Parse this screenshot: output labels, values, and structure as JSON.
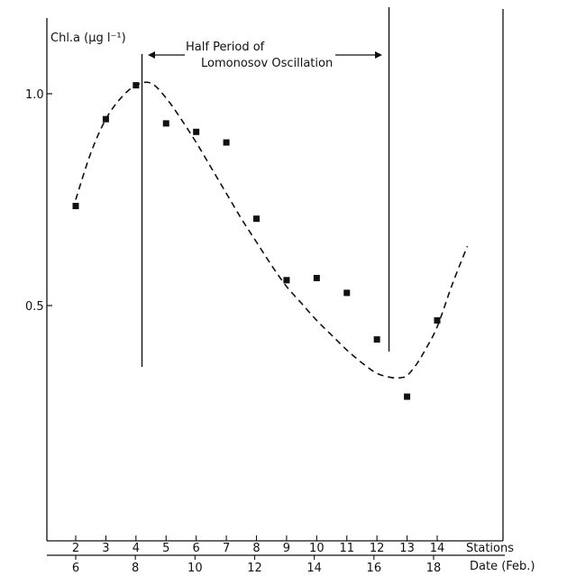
{
  "chart_data": {
    "type": "scatter",
    "ylabel": "Chl.a (µg l⁻¹)",
    "ylim": [
      0,
      1.17
    ],
    "y_ticks": [
      {
        "value": 1.0,
        "label": "1.0"
      },
      {
        "value": 0.5,
        "label": "0.5"
      }
    ],
    "x_axes": [
      {
        "label": "Stations",
        "ticks": [
          "2",
          "3",
          "4",
          "5",
          "6",
          "7",
          "8",
          "9",
          "10",
          "11",
          "12",
          "13",
          "14"
        ]
      },
      {
        "label": "Date (Feb.)",
        "ticks": [
          "6",
          "8",
          "10",
          "12",
          "14",
          "16",
          "18"
        ]
      }
    ],
    "series": [
      {
        "kind": "points",
        "x": [
          2,
          3,
          4,
          5,
          6,
          7,
          8,
          9,
          10,
          11,
          12,
          13,
          14
        ],
        "y": [
          0.735,
          0.94,
          1.02,
          0.93,
          0.91,
          0.885,
          0.705,
          0.56,
          0.565,
          0.53,
          0.42,
          0.285,
          0.465
        ]
      },
      {
        "kind": "dashed-fit",
        "x": [
          2.0,
          2.5,
          3.0,
          3.5,
          4.0,
          4.5,
          5.0,
          5.5,
          6.0,
          6.5,
          7.0,
          7.5,
          8.0,
          8.5,
          9.0,
          9.5,
          10.0,
          10.5,
          11.0,
          11.5,
          12.0,
          12.5,
          12.8,
          13.0,
          13.3,
          13.6,
          14.0,
          14.5,
          15.0
        ],
        "y": [
          0.75,
          0.86,
          0.94,
          0.99,
          1.02,
          1.025,
          0.99,
          0.94,
          0.885,
          0.825,
          0.765,
          0.705,
          0.65,
          0.595,
          0.545,
          0.505,
          0.465,
          0.43,
          0.395,
          0.365,
          0.34,
          0.33,
          0.33,
          0.335,
          0.36,
          0.395,
          0.45,
          0.55,
          0.64
        ]
      }
    ],
    "markers": [
      4.2,
      12.4
    ],
    "annotation": {
      "line1": "Half Period of",
      "line2": "Lomonosov Oscillation"
    }
  }
}
